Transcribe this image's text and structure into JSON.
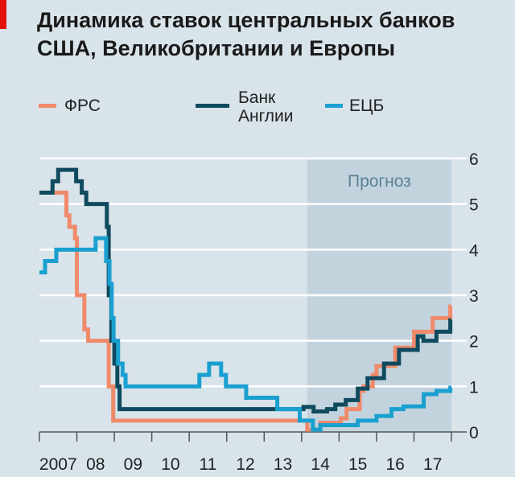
{
  "title": "Динамика ставок центральных банков США, Великобритании и Европы",
  "legend": [
    {
      "label": "ФРС",
      "color": "#f08a6a"
    },
    {
      "label_line1": "Банк",
      "label_line2": "Англии",
      "color": "#0f4a5e"
    },
    {
      "label": "ЕЦБ",
      "color": "#1aa0d0"
    }
  ],
  "chart_data": {
    "type": "line",
    "title": "Динамика ставок центральных банков США, Великобритании и Европы",
    "xlabel": "",
    "ylabel": "",
    "xlim": [
      2007,
      2018
    ],
    "ylim": [
      0,
      6
    ],
    "yticks": [
      0,
      1,
      2,
      3,
      4,
      5,
      6
    ],
    "xtick_labels": [
      "2007",
      "08",
      "09",
      "10",
      "11",
      "12",
      "13",
      "14",
      "15",
      "16",
      "17"
    ],
    "grid": true,
    "forecast": {
      "label": "Прогноз",
      "from": 2014.15,
      "to": 2018
    },
    "series": [
      {
        "name": "ФРС",
        "color": "#f08a6a",
        "step": true,
        "x": [
          2007.4,
          2007.72,
          2007.8,
          2007.95,
          2008.0,
          2008.2,
          2008.3,
          2008.85,
          2008.97,
          2014.15,
          2014.5,
          2015.05,
          2015.2,
          2015.55,
          2015.65,
          2015.9,
          2016.0,
          2016.5,
          2017.0,
          2017.5,
          2017.97
        ],
        "y": [
          5.25,
          4.75,
          4.5,
          4.25,
          3.0,
          2.25,
          2.0,
          1.0,
          0.25,
          0.05,
          0.2,
          0.3,
          0.5,
          0.9,
          1.0,
          1.25,
          1.45,
          1.85,
          2.2,
          2.5,
          2.75
        ]
      },
      {
        "name": "Банк Англии",
        "color": "#0f4a5e",
        "step": true,
        "x": [
          2007.0,
          2007.35,
          2007.5,
          2007.98,
          2008.13,
          2008.25,
          2008.8,
          2008.85,
          2008.92,
          2009.0,
          2009.08,
          2009.14,
          2014.05,
          2014.32,
          2014.68,
          2014.9,
          2015.18,
          2015.5,
          2015.76,
          2016.2,
          2016.6,
          2017.1,
          2017.25,
          2017.6,
          2017.97
        ],
        "y": [
          5.25,
          5.5,
          5.75,
          5.5,
          5.25,
          5.0,
          4.5,
          3.0,
          2.0,
          1.5,
          1.0,
          0.5,
          0.55,
          0.45,
          0.5,
          0.6,
          0.7,
          0.95,
          1.18,
          1.5,
          1.8,
          2.1,
          2.0,
          2.2,
          2.45
        ]
      },
      {
        "name": "ЕЦБ",
        "color": "#1aa0d0",
        "step": true,
        "x": [
          2007.0,
          2007.15,
          2007.45,
          2008.5,
          2008.78,
          2008.87,
          2008.93,
          2008.98,
          2009.1,
          2009.22,
          2009.3,
          2011.27,
          2011.53,
          2011.85,
          2011.98,
          2012.52,
          2013.35,
          2013.95,
          2014.3,
          2014.5,
          2015.0,
          2015.5,
          2016.0,
          2016.4,
          2016.72,
          2017.26,
          2017.6,
          2017.97
        ],
        "y": [
          3.5,
          3.75,
          4.0,
          4.25,
          3.75,
          3.25,
          2.5,
          2.0,
          1.5,
          1.25,
          1.0,
          1.25,
          1.5,
          1.25,
          1.0,
          0.75,
          0.5,
          0.25,
          0.05,
          0.15,
          0.15,
          0.25,
          0.35,
          0.5,
          0.56,
          0.83,
          0.9,
          0.97
        ]
      }
    ]
  }
}
